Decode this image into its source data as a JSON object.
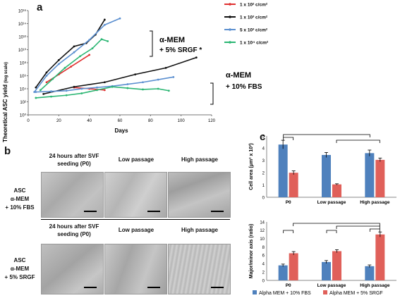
{
  "panel_a": {
    "letter": "a",
    "ylabel": "Theoretical ASC yield",
    "ylabel_unit": "(log scale)",
    "xlabel": "Days",
    "legend": [
      {
        "label": "1 x 10² c/cm²",
        "color": "#e03030"
      },
      {
        "label": "1 x 10³ c/cm²",
        "color": "#111111"
      },
      {
        "label": "5 x 10³ c/cm²",
        "color": "#5b8fd0"
      },
      {
        "label": "1 x 10⁴ c/cm²",
        "color": "#2bb673"
      }
    ],
    "bracket_srgf": "α-MEM\n+ 5% SRGF *",
    "bracket_srgf_line1": "α-MEM",
    "bracket_srgf_line2": "+ 5% SRGF *",
    "bracket_fbs_line1": "α-MEM",
    "bracket_fbs_line2": "+ 10% FBS"
  },
  "panel_b": {
    "letter": "b",
    "col1": "24 hours after SVF seeding (P0)",
    "col1_l1": "24 hours after SVF",
    "col1_l2": "seeding (P0)",
    "col2": "Low passage",
    "col3": "High passage",
    "row1_l1": "ASC",
    "row1_l2": "α-MEM",
    "row1_l3": "+ 10% FBS",
    "row2_l1": "ASC",
    "row2_l2": "α-MEM",
    "row2_l3": "+ 5% SRGF"
  },
  "panel_c": {
    "letter": "c",
    "legend_fbs": "Alpha MEM + 10% FBS",
    "legend_srgf": "Alpha MEM + 5% SRGF",
    "color_fbs": "#4f81bd",
    "color_srgf": "#e0605a"
  },
  "chart_data": [
    {
      "type": "line",
      "panel": "a",
      "xlabel": "Days",
      "ylabel": "Theoretical ASC yield (log scale)",
      "xlim": [
        0,
        120
      ],
      "xticks": [
        0,
        20,
        40,
        60,
        80,
        100,
        120
      ],
      "ylim_log10": [
        0,
        16
      ],
      "yticks": [
        "10⁰",
        "10²",
        "10⁴",
        "10⁶",
        "10⁸",
        "10¹⁰",
        "10¹²",
        "10¹⁴",
        "10¹⁶"
      ],
      "ytick_exponents": [
        0,
        2,
        4,
        6,
        8,
        10,
        12,
        14,
        16
      ],
      "series": [
        {
          "name": "1 x 10² c/cm²",
          "group": "SRGF",
          "color": "#e03030",
          "x": [
            12,
            20,
            28,
            40
          ],
          "log10y": [
            5.0,
            6.2,
            7.4,
            9.2
          ]
        },
        {
          "name": "1 x 10³ c/cm²",
          "group": "SRGF",
          "color": "#111111",
          "x": [
            5,
            12,
            20,
            30,
            38,
            44,
            50
          ],
          "log10y": [
            4.2,
            6.5,
            8.4,
            10.5,
            11.0,
            12.3,
            14.6
          ]
        },
        {
          "name": "5 x 10³ c/cm²",
          "group": "SRGF",
          "color": "#5b8fd0",
          "x": [
            4,
            12,
            20,
            30,
            40,
            50,
            60
          ],
          "log10y": [
            3.5,
            6.0,
            7.8,
            9.6,
            11.5,
            13.8,
            14.8
          ]
        },
        {
          "name": "1 x 10⁴ c/cm²",
          "group": "SRGF",
          "color": "#2bb673",
          "x": [
            8,
            16,
            24,
            34,
            42,
            48,
            52
          ],
          "log10y": [
            3.8,
            5.5,
            7.2,
            9.0,
            10.2,
            11.6,
            11.3
          ]
        },
        {
          "name": "1 x 10² c/cm²",
          "group": "FBS",
          "color": "#e03030",
          "x": [
            30,
            40,
            50
          ],
          "log10y": [
            4.2,
            4.0,
            3.8
          ]
        },
        {
          "name": "1 x 10³ c/cm²",
          "group": "FBS",
          "color": "#111111",
          "x": [
            10,
            30,
            50,
            70,
            90,
            110
          ],
          "log10y": [
            3.2,
            4.3,
            5.0,
            6.2,
            7.2,
            8.8
          ]
        },
        {
          "name": "5 x 10³ c/cm²",
          "group": "FBS",
          "color": "#5b8fd0",
          "x": [
            5,
            15,
            25,
            35,
            45,
            55,
            65,
            75,
            85,
            95
          ],
          "log10y": [
            3.5,
            3.6,
            3.7,
            4.0,
            4.2,
            4.4,
            4.7,
            5.0,
            5.4,
            5.8
          ]
        },
        {
          "name": "1 x 10⁴ c/cm²",
          "group": "FBS",
          "color": "#2bb673",
          "x": [
            5,
            15,
            25,
            35,
            45,
            55,
            65,
            75,
            85,
            92
          ],
          "log10y": [
            2.6,
            2.8,
            3.0,
            3.3,
            3.8,
            4.3,
            4.1,
            3.9,
            4.0,
            3.7
          ]
        }
      ]
    },
    {
      "type": "bar",
      "panel": "c-top",
      "ylabel": "Cell area (μm² x 10³)",
      "categories": [
        "P0",
        "Low passage",
        "High passage"
      ],
      "ylim": [
        0,
        5
      ],
      "yticks": [
        0,
        1,
        2,
        3,
        4,
        5
      ],
      "series": [
        {
          "name": "Alpha MEM + 10% FBS",
          "values": [
            4.3,
            3.45,
            3.6
          ],
          "errors": [
            0.35,
            0.2,
            0.25
          ]
        },
        {
          "name": "Alpha MEM + 5% SRGF",
          "values": [
            2.0,
            1.05,
            3.05
          ],
          "errors": [
            0.15,
            0.05,
            0.15
          ]
        }
      ]
    },
    {
      "type": "bar",
      "panel": "c-bottom",
      "ylabel": "Major/minor axis (ratio)",
      "categories": [
        "P0",
        "Low passage",
        "High passage"
      ],
      "ylim": [
        0,
        14
      ],
      "yticks": [
        0,
        2,
        4,
        6,
        8,
        10,
        12,
        14
      ],
      "series": [
        {
          "name": "Alpha MEM + 10% FBS",
          "values": [
            3.6,
            4.4,
            3.4
          ],
          "errors": [
            0.3,
            0.35,
            0.3
          ]
        },
        {
          "name": "Alpha MEM + 5% SRGF",
          "values": [
            6.5,
            7.0,
            11.0
          ],
          "errors": [
            0.4,
            0.35,
            0.6
          ]
        }
      ]
    }
  ]
}
